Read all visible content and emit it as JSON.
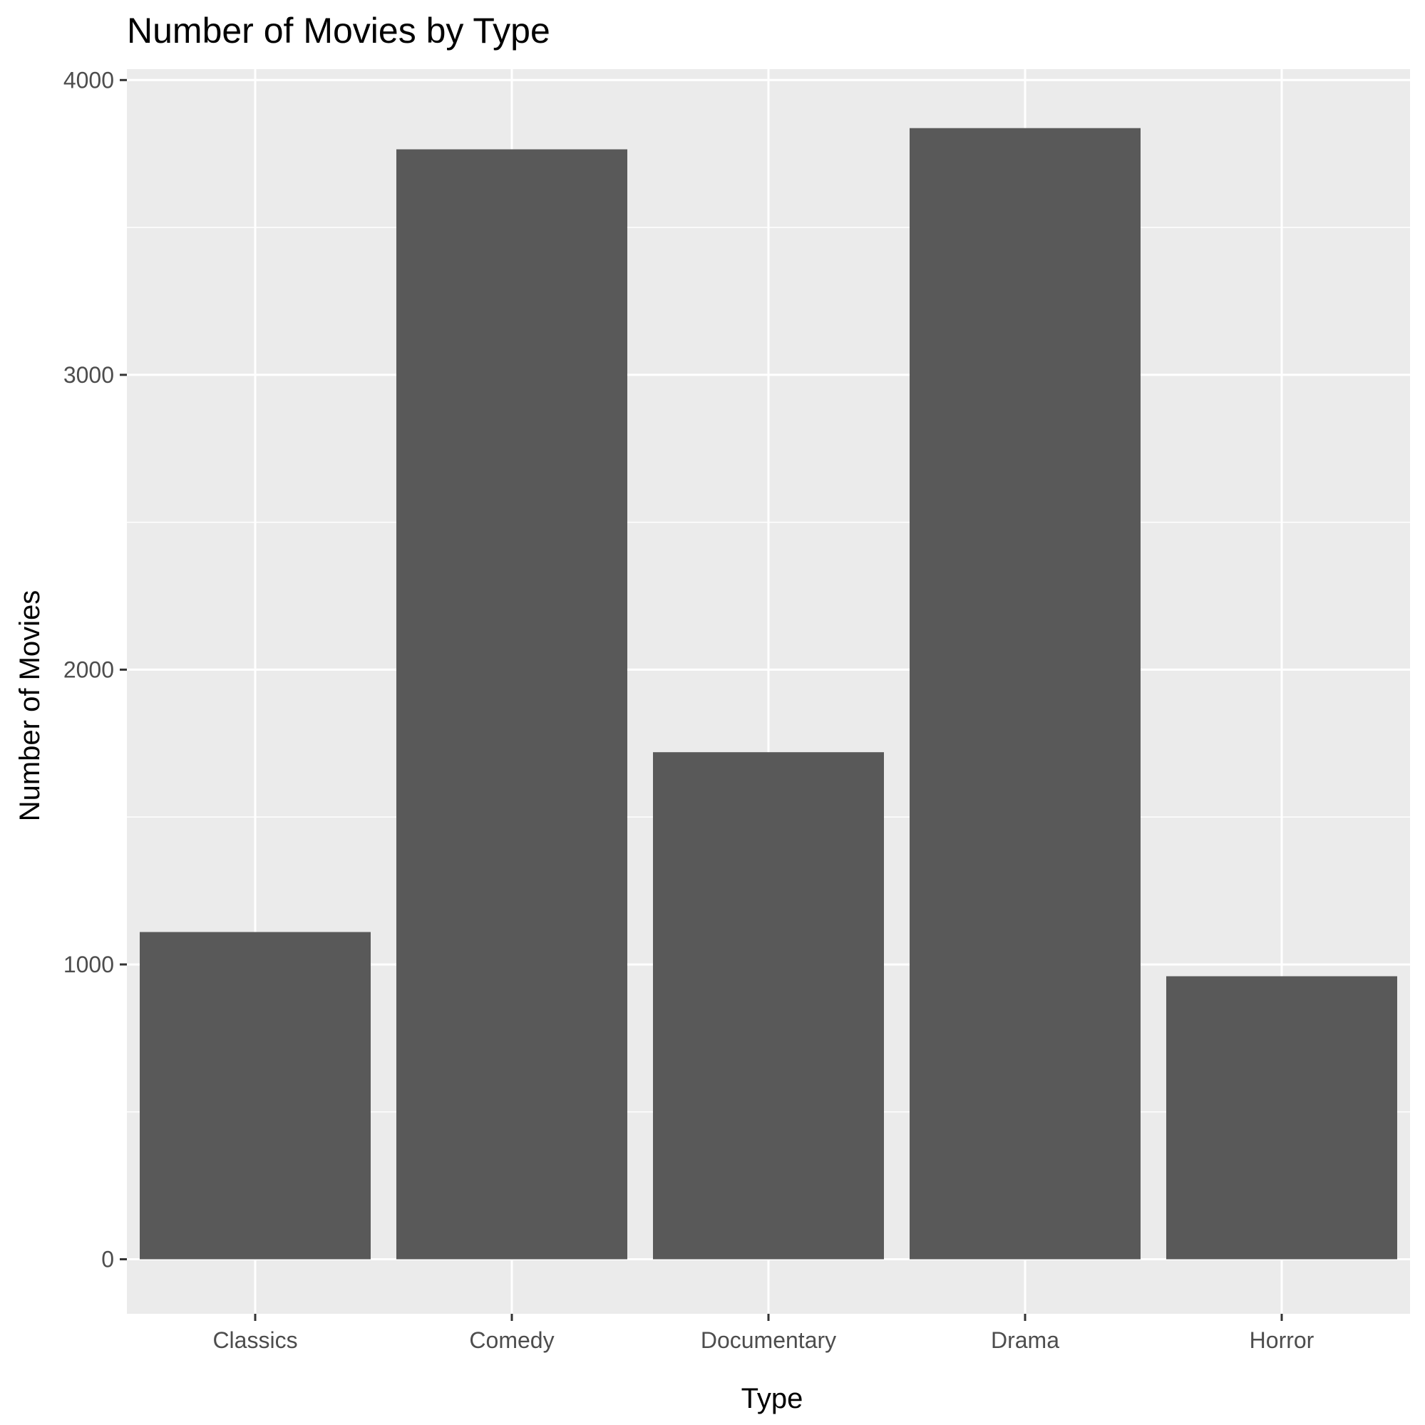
{
  "chart_data": {
    "type": "bar",
    "title": "Number of Movies by Type",
    "xlabel": "Type",
    "ylabel": "Number of Movies",
    "categories": [
      "Classics",
      "Comedy",
      "Documentary",
      "Drama",
      "Horror"
    ],
    "values": [
      1110,
      3765,
      1720,
      3837,
      960
    ],
    "ylim": [
      -185,
      4037
    ],
    "yticks": [
      0,
      1000,
      2000,
      3000,
      4000
    ],
    "y_minor_ticks": [
      500,
      1500,
      2500,
      3500
    ],
    "grid": true,
    "colors": {
      "bar": "#595959",
      "panel": "#ebebeb",
      "grid": "#ffffff",
      "tick_mark": "#333333"
    }
  }
}
